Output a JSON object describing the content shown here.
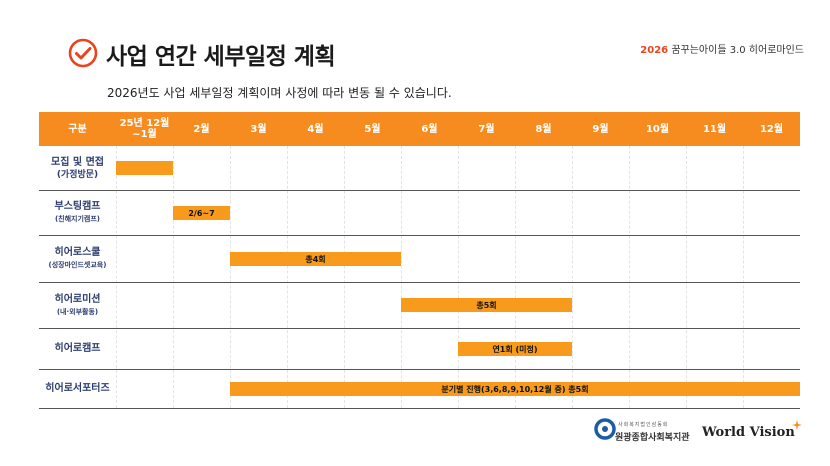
{
  "header": {
    "title": "사업 연간 세부일정 계획",
    "brand_year": "2026",
    "brand_text": "꿈꾸는아이들 3.0 히어로마인드",
    "subtitle": "2026년도 사업 세부일정 계획이며 사정에 따라 변동 될 수 있습니다."
  },
  "table": {
    "header_col": "구분",
    "months": [
      "25년 12월\n~1월",
      "2월",
      "3월",
      "4월",
      "5월",
      "6월",
      "7월",
      "8월",
      "9월",
      "10월",
      "11월",
      "12월"
    ],
    "rows": [
      {
        "name": "모집 및 면접",
        "sub": "(가정방문)",
        "bar": {
          "start": 0,
          "end": 1,
          "label": ""
        }
      },
      {
        "name": "부스팅캠프",
        "sub": "(친해지기캠프)",
        "bar": {
          "start": 1,
          "end": 2,
          "label": "2/6~7"
        }
      },
      {
        "name": "히어로스쿨",
        "sub": "(성장마인드셋교육)",
        "bar": {
          "start": 2,
          "end": 5,
          "label": "총4회"
        }
      },
      {
        "name": "히어로미션",
        "sub": "(내·외부활동)",
        "bar": {
          "start": 5,
          "end": 8,
          "label": "총5회"
        }
      },
      {
        "name": "히어로캠프",
        "sub": "",
        "bar": {
          "start": 6,
          "end": 8,
          "label": "연1회 (미정)"
        }
      },
      {
        "name": "히어로서포터즈",
        "sub": "",
        "bar": {
          "start": 2,
          "end": 12,
          "label": "분기별 진행(3,6,8,9,10,12월 중) 총5회"
        }
      }
    ]
  },
  "footer": {
    "org_small": "사회복지법인삼동회",
    "org_name": "원광종합사회복지관",
    "partner": "World Vision"
  },
  "colors": {
    "accent": "#f68b1f",
    "bar": "#f89a1c",
    "title_check": "#e8441e"
  }
}
